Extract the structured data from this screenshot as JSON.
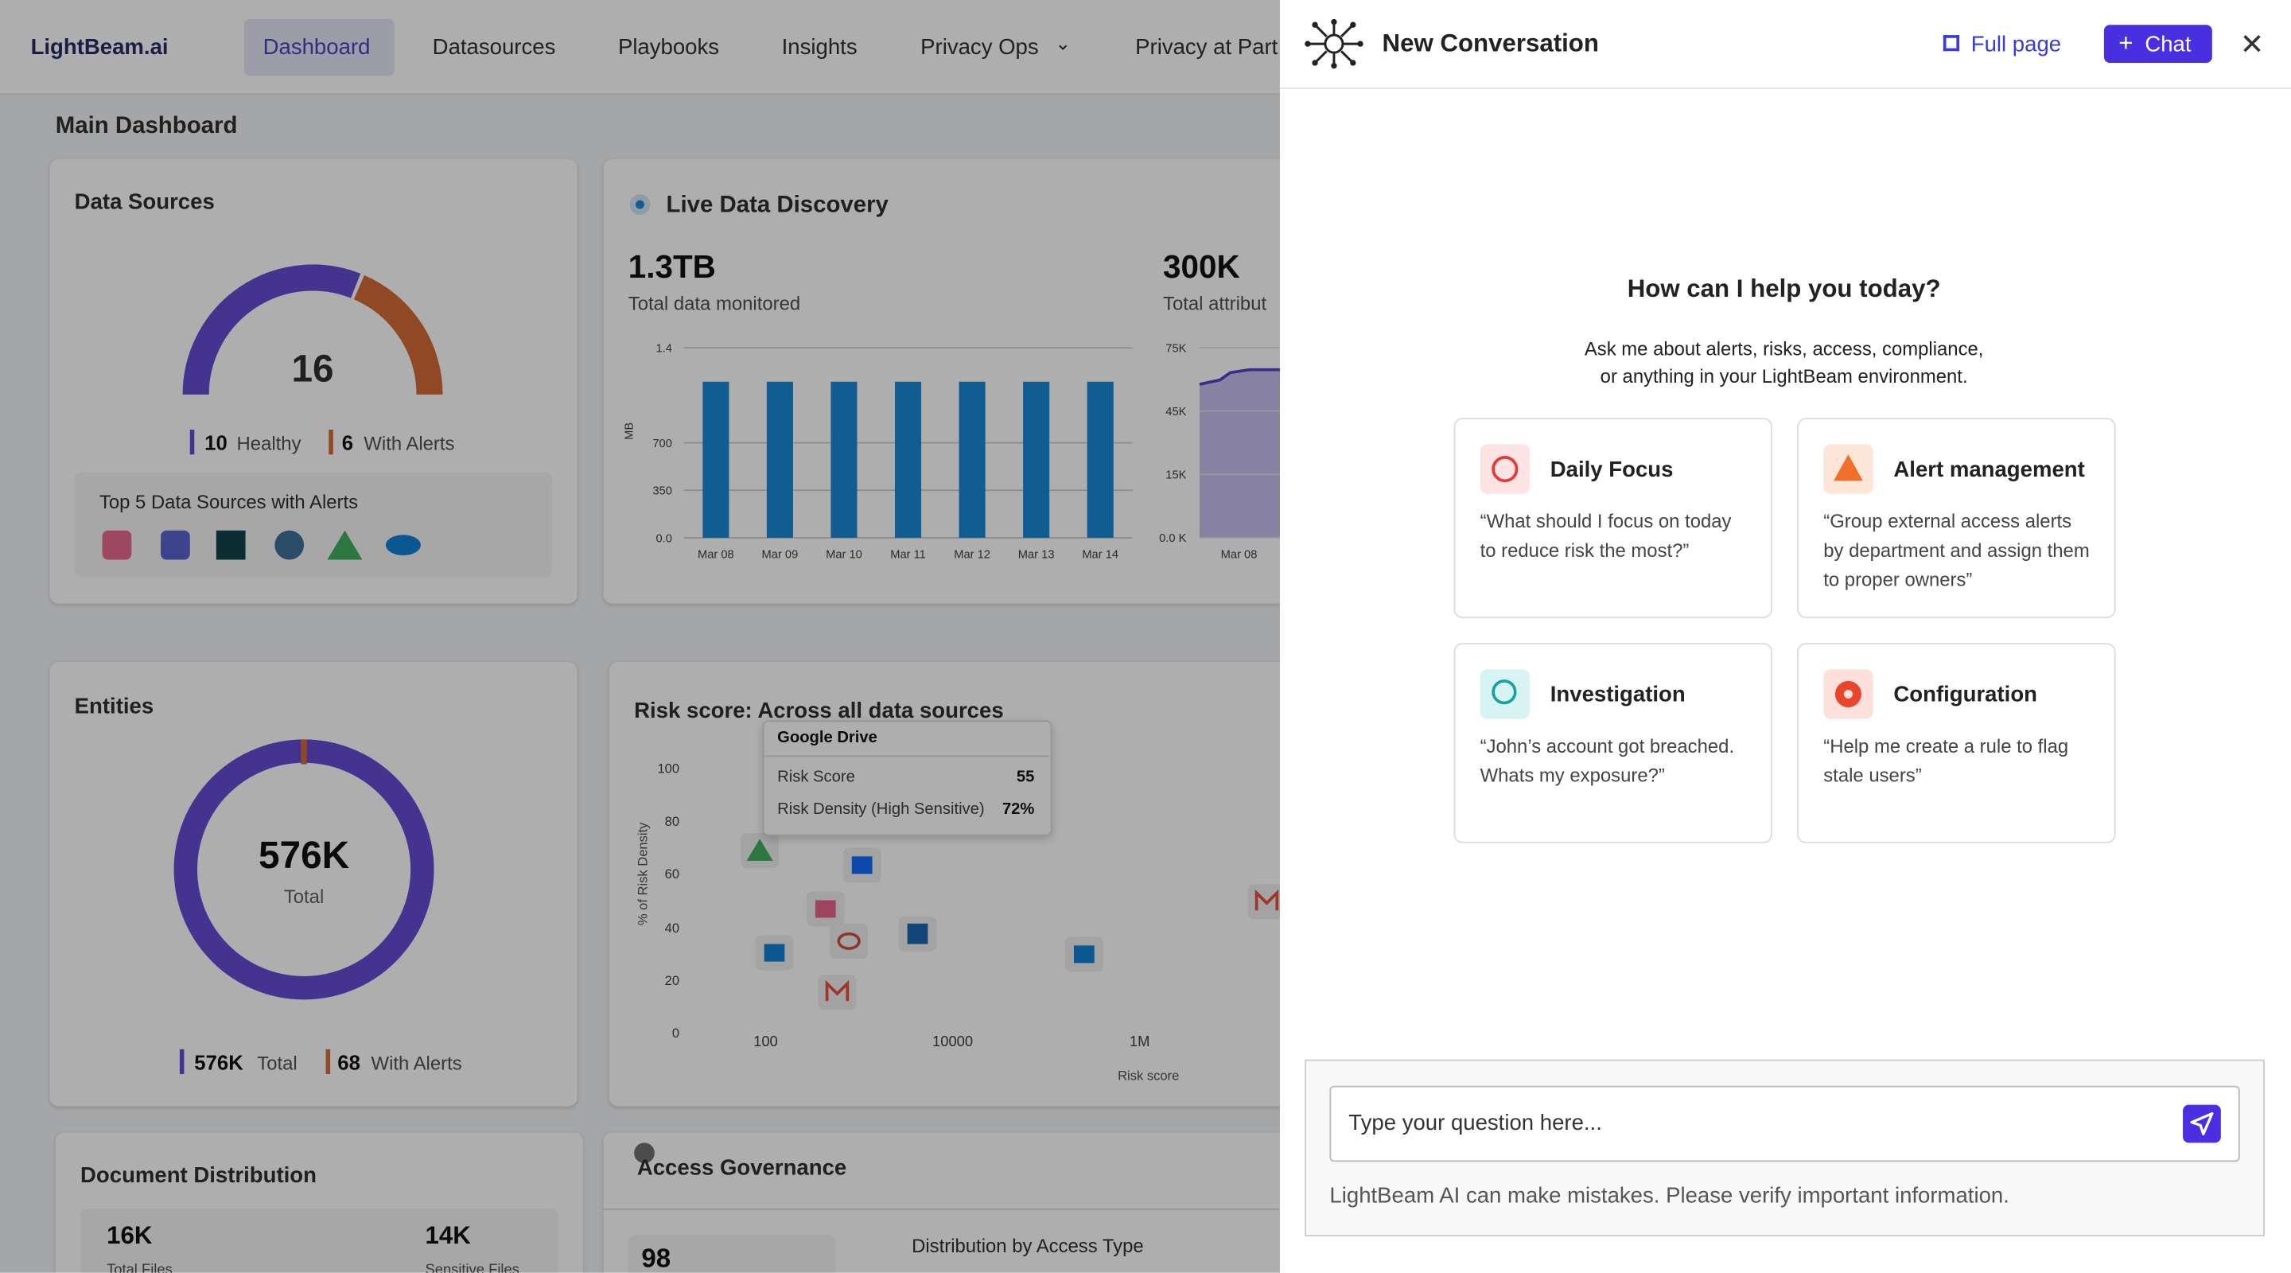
{
  "nav": {
    "logo": "LightBeam.ai",
    "items": [
      "Dashboard",
      "Datasources",
      "Playbooks",
      "Insights",
      "Privacy Ops",
      "Privacy at Part"
    ]
  },
  "dashboard": {
    "title": "Main Dashboard",
    "data_sources": {
      "title": "Data Sources",
      "gauge_value": 16,
      "healthy": 10,
      "healthy_label": "Healthy",
      "alerts": 6,
      "alerts_label": "With Alerts",
      "top5_title": "Top 5 Data Sources with Alerts"
    },
    "live": {
      "title": "Live Data Discovery",
      "stat1": "1.3TB",
      "stat1_label": "Total data monitored",
      "stat2": "300K",
      "stat2_label": "Total attribut",
      "chart": {
        "type": "bar",
        "y_label": "MB",
        "categories": [
          "Mar 08",
          "Mar 09",
          "Mar 10",
          "Mar 11",
          "Mar 12",
          "Mar 13",
          "Mar 14"
        ],
        "values": [
          1150,
          1150,
          1150,
          1150,
          1150,
          1150,
          1150
        ],
        "color": "#0a7fd0",
        "ylim": [
          0,
          1400
        ],
        "yticks": [
          {
            "value": 0,
            "label": "0.0"
          },
          350,
          700,
          {
            "value": 1400,
            "label": "1.4"
          }
        ]
      },
      "chart2": {
        "yticks": [
          "75K",
          "45K",
          "15K",
          "0.0 K"
        ],
        "category": "Mar 08"
      }
    },
    "entities": {
      "title": "Entities",
      "total": "576K",
      "total_label": "Total",
      "legend_total": "576K",
      "legend_total_label": "Total",
      "alerts": "68",
      "alerts_label": "With Alerts"
    },
    "risk": {
      "title": "Risk score: Across all data sources",
      "y_label": "% of Risk Density",
      "x_label": "Risk score",
      "yticks": [
        "100",
        "80",
        "60",
        "40",
        "20",
        "0"
      ],
      "xticks": [
        "100",
        "10000",
        "1M"
      ],
      "tooltip": {
        "title": "Google Drive",
        "rows": [
          [
            "Risk Score",
            "55"
          ],
          [
            "Risk Density (High Sensitive)",
            "72%"
          ]
        ]
      }
    },
    "documents": {
      "title": "Document Distribution",
      "total": "16K",
      "total_label": "Total Files",
      "sensitive": "14K",
      "sensitive_label": "Sensitive Files"
    },
    "access": {
      "title": "Access Governance",
      "value": "98",
      "subtitle": "Distribution by Access Type"
    }
  },
  "assistant": {
    "title": "New Conversation",
    "full_page": "Full page",
    "chat": "Chat",
    "heading": "How can I help you today?",
    "intro": [
      "Ask me about alerts, risks, access, compliance,",
      "or anything in your LightBeam environment."
    ],
    "suggestions": [
      {
        "title": "Daily Focus",
        "prompt": "“What should I focus on today to reduce risk the most?”"
      },
      {
        "title": "Alert management",
        "prompt": "“Group external access alerts by department and assign them to proper owners”"
      },
      {
        "title": "Investigation",
        "prompt": "“John’s account got breached. Whats my exposure?”"
      },
      {
        "title": "Configuration",
        "prompt": "“Help me create a rule to flag stale users”"
      }
    ],
    "placeholder": "Type your question here...",
    "disclaimer": "LightBeam AI can make mistakes. Please verify important information."
  }
}
